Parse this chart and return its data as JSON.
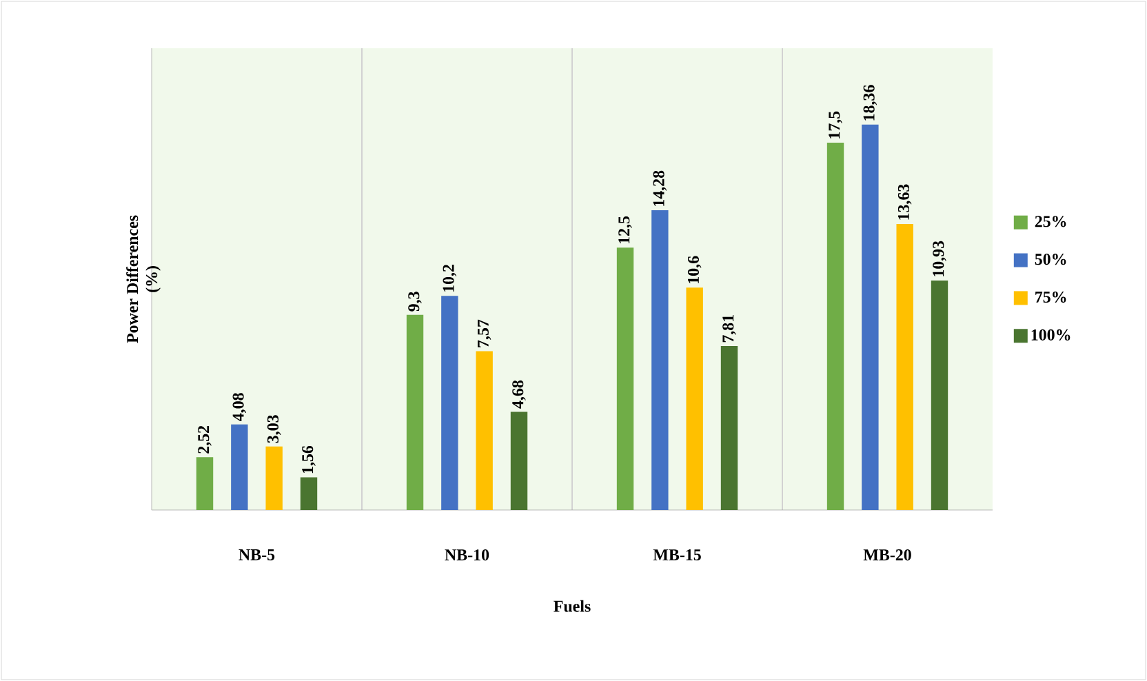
{
  "chart_data": {
    "type": "bar",
    "xlabel": "Fuels",
    "ylabel": "Power Differences (%)",
    "categories": [
      "NB-5",
      "NB-10",
      "MB-15",
      "MB-20"
    ],
    "series": [
      {
        "name": "25%",
        "color": "#70ad47",
        "values": [
          2.52,
          9.3,
          12.5,
          17.5
        ],
        "value_labels": [
          "2,52",
          "9,3",
          "12,5",
          "17,5"
        ]
      },
      {
        "name": "50%",
        "color": "#4472c4",
        "values": [
          4.08,
          10.2,
          14.28,
          18.36
        ],
        "value_labels": [
          "4,08",
          "10,2",
          "14,28",
          "18,36"
        ]
      },
      {
        "name": "75%",
        "color": "#ffc000",
        "values": [
          3.03,
          7.57,
          10.6,
          13.63
        ],
        "value_labels": [
          "3,03",
          "7,57",
          "10,6",
          "13,63"
        ]
      },
      {
        "name": "100%",
        "color": "#4a7530",
        "values": [
          1.56,
          4.68,
          7.81,
          10.93
        ],
        "value_labels": [
          "1,56",
          "4,68",
          "7,81",
          "10,93"
        ]
      }
    ],
    "ylim": [
      0,
      22
    ],
    "tick_labels": "x",
    "grid": "x",
    "legend": "right"
  }
}
